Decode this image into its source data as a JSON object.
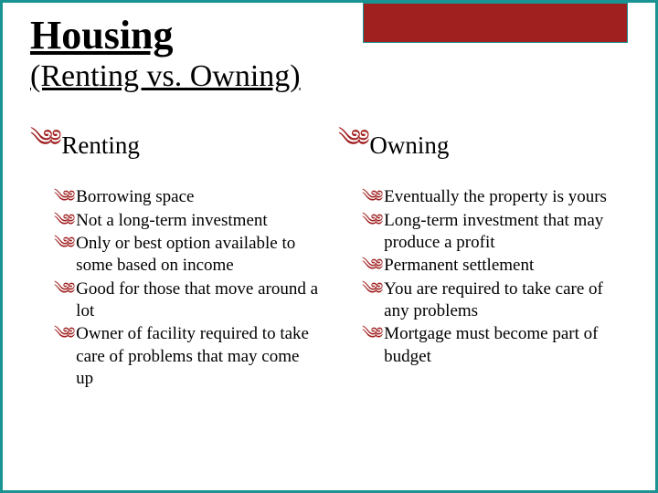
{
  "colors": {
    "border": "#1c9393",
    "accent_box": "#a02020",
    "bullet": "#a02020",
    "text": "#000000",
    "background": "#ffffff"
  },
  "typography": {
    "title_fontsize": 44,
    "subtitle_fontsize": 34,
    "heading_fontsize": 27,
    "body_fontsize": 19,
    "font_family": "Georgia, Times New Roman, serif"
  },
  "title": "Housing",
  "subtitle": "(Renting vs. Owning)",
  "bullet_glyph": "༄༅",
  "columns": [
    {
      "heading": "Renting",
      "points": [
        "Borrowing space",
        "Not a long-term investment",
        "Only or best option available to some based on income",
        "Good for those that move around a lot",
        "Owner of facility required to take care of problems that may come up"
      ]
    },
    {
      "heading": "Owning",
      "points": [
        "Eventually the property is yours",
        "Long-term investment that may produce a profit",
        "Permanent settlement",
        "You are required to take care of any problems",
        "Mortgage must become part of budget"
      ]
    }
  ]
}
